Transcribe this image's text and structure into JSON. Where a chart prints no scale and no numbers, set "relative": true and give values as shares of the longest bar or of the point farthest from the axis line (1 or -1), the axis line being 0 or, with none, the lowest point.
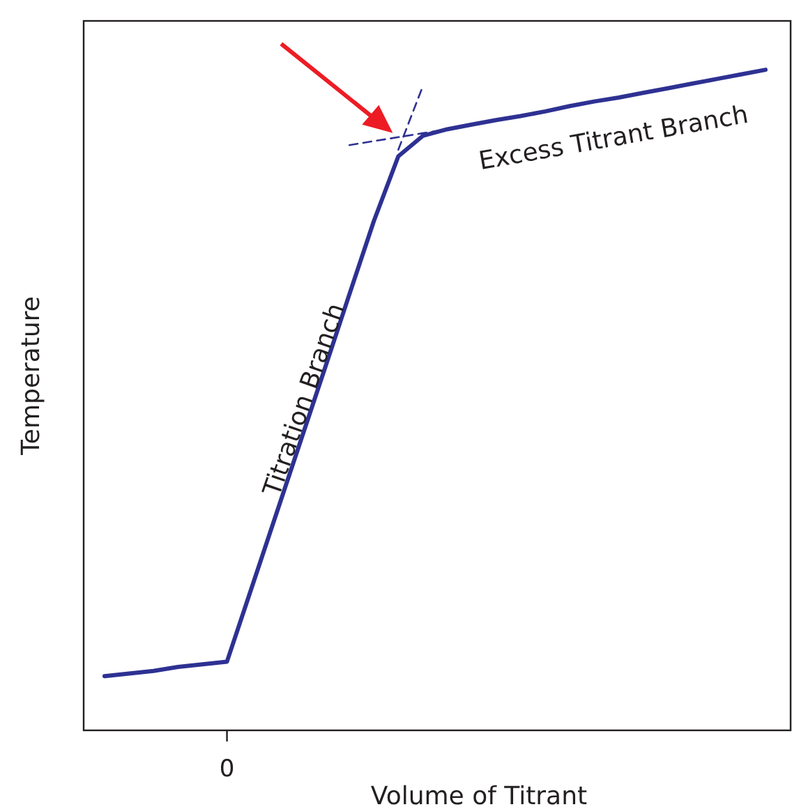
{
  "chart_data": {
    "type": "line",
    "relative": true,
    "xlabel": "Volume of Titrant",
    "ylabel": "Temperature",
    "categories": [
      null,
      null,
      null,
      null,
      null,
      null,
      null,
      null,
      null,
      null,
      null,
      null,
      null,
      null,
      null,
      null,
      null,
      null,
      null,
      null,
      null,
      null,
      null,
      null,
      null,
      null,
      null,
      null
    ],
    "series": [
      {
        "color": "#2e3192",
        "values": [
          0.082,
          0.086,
          0.09,
          0.096,
          0.1,
          0.104,
          0.215,
          0.326,
          0.437,
          0.548,
          0.66,
          0.771,
          0.869,
          0.9,
          0.91,
          0.917,
          0.924,
          0.93,
          0.937,
          0.945,
          0.952,
          0.958,
          0.965,
          0.972,
          0.979,
          0.986,
          0.993,
          1
        ]
      },
      {
        "type": "line",
        "line_style": "dashed",
        "color": "#2e3192",
        "values": [
          null,
          null,
          null,
          null,
          null,
          null,
          null,
          null,
          null,
          null,
          null,
          null,
          0.879,
          0.975,
          null,
          null,
          null,
          null,
          null,
          null,
          null,
          null,
          null,
          null,
          null,
          null,
          null,
          null
        ]
      },
      {
        "type": "line",
        "line_style": "dashed",
        "color": "#2e3192",
        "values": [
          null,
          null,
          null,
          null,
          null,
          null,
          null,
          null,
          null,
          null,
          0.886,
          0.892,
          0.898,
          0.904,
          0.91,
          null,
          null,
          null,
          null,
          null,
          null,
          null,
          null,
          null,
          null,
          null,
          null,
          null
        ]
      }
    ],
    "annotations": [
      "Titration Branch",
      "Excess Titrant Branch",
      "0"
    ]
  }
}
